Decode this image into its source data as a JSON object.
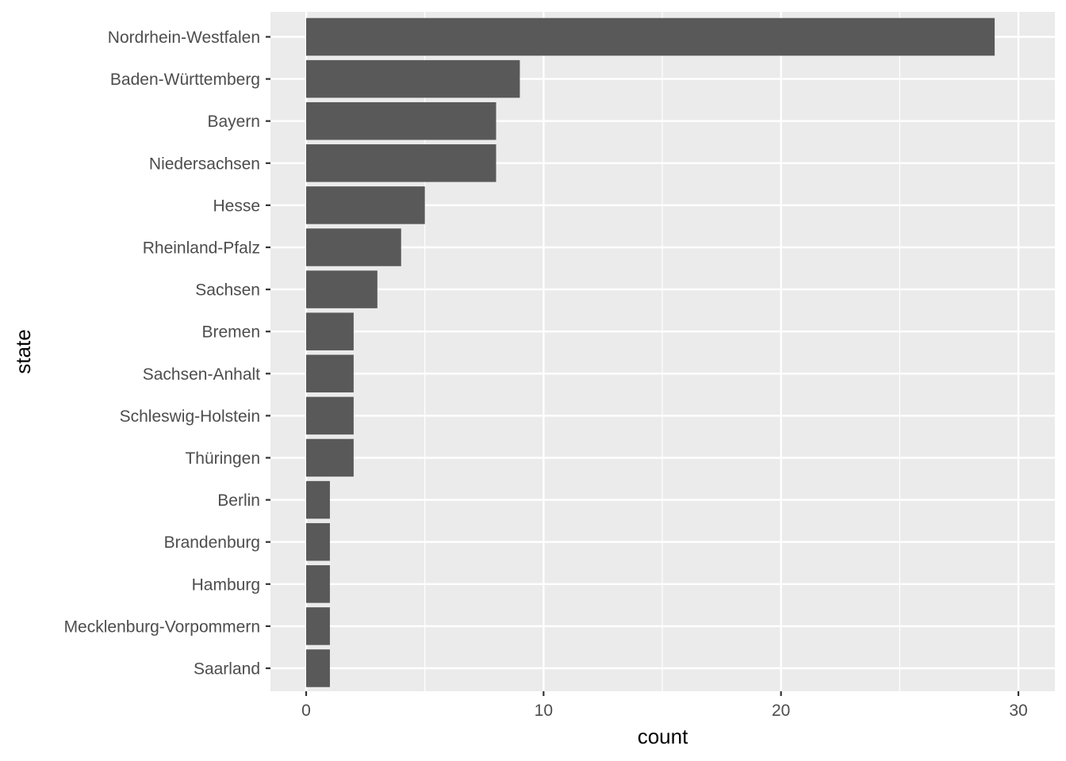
{
  "chart_data": {
    "type": "bar",
    "orientation": "horizontal",
    "categories": [
      "Nordrhein-Westfalen",
      "Baden-Württemberg",
      "Bayern",
      "Niedersachsen",
      "Hesse",
      "Rheinland-Pfalz",
      "Sachsen",
      "Bremen",
      "Sachsen-Anhalt",
      "Schleswig-Holstein",
      "Thüringen",
      "Berlin",
      "Brandenburg",
      "Hamburg",
      "Mecklenburg-Vorpommern",
      "Saarland"
    ],
    "values": [
      29,
      9,
      8,
      8,
      5,
      4,
      3,
      2,
      2,
      2,
      2,
      1,
      1,
      1,
      1,
      1
    ],
    "title": "",
    "xlabel": "count",
    "ylabel": "state",
    "xlim": [
      0,
      30
    ],
    "xticks": [
      0,
      10,
      20,
      30
    ],
    "grid": true,
    "colors": {
      "bar": "#595959",
      "panel": "#ebebeb",
      "grid": "#ffffff",
      "tick_text": "#4d4d4d",
      "tick_mark": "#333333",
      "title_text": "#000000"
    }
  }
}
